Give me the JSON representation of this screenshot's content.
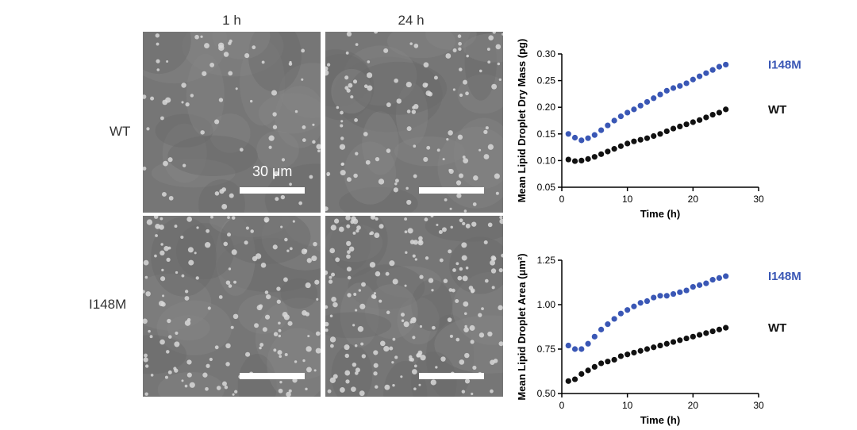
{
  "micrographs": {
    "columns": [
      "1 h",
      "24 h"
    ],
    "rows": [
      "WT",
      "I148M"
    ],
    "scale_label": "30 μm"
  },
  "chart_data": [
    {
      "type": "scatter",
      "ylabel": "Mean Lipid Droplet Dry Mass (pg)",
      "xlabel": "Time (h)",
      "xlim": [
        0,
        30
      ],
      "ylim": [
        0.05,
        0.3
      ],
      "xticks": [
        0,
        10,
        20,
        30
      ],
      "yticks": [
        0.05,
        0.1,
        0.15,
        0.2,
        0.25,
        0.3
      ],
      "ytick_labels": [
        "0.05",
        "0.10",
        "0.15",
        "0.20",
        "0.25",
        "0.30"
      ],
      "series": [
        {
          "name": "I148M",
          "color": "#3a57b5",
          "x": [
            1,
            2,
            3,
            4,
            5,
            6,
            7,
            8,
            9,
            10,
            11,
            12,
            13,
            14,
            15,
            16,
            17,
            18,
            19,
            20,
            21,
            22,
            23,
            24,
            25
          ],
          "y": [
            0.15,
            0.143,
            0.138,
            0.142,
            0.148,
            0.157,
            0.166,
            0.175,
            0.183,
            0.19,
            0.196,
            0.203,
            0.21,
            0.217,
            0.224,
            0.231,
            0.236,
            0.24,
            0.245,
            0.252,
            0.258,
            0.264,
            0.27,
            0.276,
            0.28
          ]
        },
        {
          "name": "WT",
          "color": "#111111",
          "x": [
            1,
            2,
            3,
            4,
            5,
            6,
            7,
            8,
            9,
            10,
            11,
            12,
            13,
            14,
            15,
            16,
            17,
            18,
            19,
            20,
            21,
            22,
            23,
            24,
            25
          ],
          "y": [
            0.102,
            0.099,
            0.1,
            0.103,
            0.107,
            0.112,
            0.117,
            0.122,
            0.127,
            0.132,
            0.136,
            0.139,
            0.142,
            0.146,
            0.15,
            0.155,
            0.16,
            0.164,
            0.168,
            0.172,
            0.176,
            0.181,
            0.186,
            0.19,
            0.196
          ]
        }
      ]
    },
    {
      "type": "scatter",
      "ylabel": "Mean Lipid Droplet Area (μm²)",
      "xlabel": "Time (h)",
      "xlim": [
        0,
        30
      ],
      "ylim": [
        0.5,
        1.25
      ],
      "xticks": [
        0,
        10,
        20,
        30
      ],
      "yticks": [
        0.5,
        0.75,
        1.0,
        1.25
      ],
      "ytick_labels": [
        "0.50",
        "0.75",
        "1.00",
        "1.25"
      ],
      "series": [
        {
          "name": "I148M",
          "color": "#3a57b5",
          "x": [
            1,
            2,
            3,
            4,
            5,
            6,
            7,
            8,
            9,
            10,
            11,
            12,
            13,
            14,
            15,
            16,
            17,
            18,
            19,
            20,
            21,
            22,
            23,
            24,
            25
          ],
          "y": [
            0.77,
            0.75,
            0.75,
            0.78,
            0.82,
            0.86,
            0.89,
            0.92,
            0.95,
            0.97,
            0.99,
            1.01,
            1.02,
            1.04,
            1.05,
            1.05,
            1.06,
            1.07,
            1.08,
            1.1,
            1.11,
            1.12,
            1.14,
            1.15,
            1.16
          ]
        },
        {
          "name": "WT",
          "color": "#111111",
          "x": [
            1,
            2,
            3,
            4,
            5,
            6,
            7,
            8,
            9,
            10,
            11,
            12,
            13,
            14,
            15,
            16,
            17,
            18,
            19,
            20,
            21,
            22,
            23,
            24,
            25
          ],
          "y": [
            0.57,
            0.58,
            0.61,
            0.63,
            0.65,
            0.67,
            0.68,
            0.69,
            0.71,
            0.72,
            0.73,
            0.74,
            0.75,
            0.76,
            0.77,
            0.78,
            0.79,
            0.8,
            0.81,
            0.82,
            0.83,
            0.84,
            0.85,
            0.86,
            0.87
          ]
        }
      ]
    }
  ]
}
